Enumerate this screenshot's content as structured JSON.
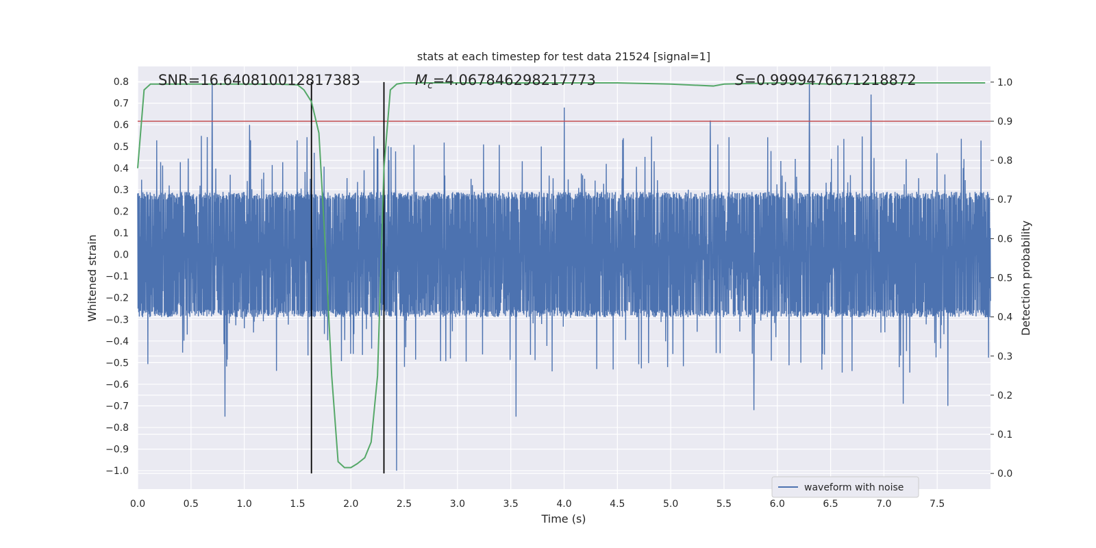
{
  "chart_data": {
    "type": "line",
    "title": "stats at each timestep for test data 21524 [signal=1]",
    "xlabel": "Time (s)",
    "ylabel": "Whitened strain",
    "y2label": "Detection probability",
    "xlim": [
      0.0,
      8.0
    ],
    "ylim": [
      -1.085,
      0.87
    ],
    "y2lim": [
      -0.04,
      1.04
    ],
    "xticks": [
      "0.0",
      "0.5",
      "1.0",
      "1.5",
      "2.0",
      "2.5",
      "3.0",
      "3.5",
      "4.0",
      "4.5",
      "5.0",
      "5.5",
      "6.0",
      "6.5",
      "7.0",
      "7.5"
    ],
    "yticks": [
      "0.8",
      "0.7",
      "0.6",
      "0.5",
      "0.4",
      "0.3",
      "0.2",
      "0.1",
      "0.0",
      "−0.1",
      "−0.2",
      "−0.3",
      "−0.4",
      "−0.5",
      "−0.6",
      "−0.7",
      "−0.8",
      "−0.9",
      "−1.0"
    ],
    "y2ticks": [
      "1.0",
      "0.9",
      "0.8",
      "0.7",
      "0.6",
      "0.5",
      "0.4",
      "0.3",
      "0.2",
      "0.1",
      "0.0"
    ],
    "annotations": {
      "snr": "SNR=16.640810012817383",
      "mc_symbol": "M",
      "mc_sub": "c",
      "mc_value": "=4.067846298217773",
      "s_symbol": "S",
      "s_value": "=0.9999476671218872"
    },
    "threshold": {
      "value": 0.9,
      "axis": "right",
      "color": "#c44e52"
    },
    "vlines": [
      1.63,
      2.31
    ],
    "waveform": {
      "name": "waveform with noise",
      "color": "#4c72b0",
      "typical_envelope": 0.29,
      "peaks": [
        {
          "x": 0.7,
          "y": 0.8
        },
        {
          "x": 2.43,
          "y": -1.0
        },
        {
          "x": 6.3,
          "y": 0.8
        },
        {
          "x": 0.82,
          "y": -0.75
        },
        {
          "x": 3.55,
          "y": -0.75
        },
        {
          "x": 7.18,
          "y": -0.69
        },
        {
          "x": 5.78,
          "y": -0.72
        },
        {
          "x": 1.05,
          "y": 0.6
        },
        {
          "x": 4.0,
          "y": 0.68
        },
        {
          "x": 5.37,
          "y": 0.62
        },
        {
          "x": 6.88,
          "y": 0.74
        },
        {
          "x": 7.6,
          "y": -0.7
        }
      ]
    },
    "probability": {
      "name": "detection probability",
      "color": "#55a868",
      "x": [
        0.0,
        0.06,
        0.12,
        0.2,
        0.5,
        1.0,
        1.3,
        1.5,
        1.56,
        1.63,
        1.7,
        1.76,
        1.82,
        1.88,
        1.94,
        2.0,
        2.06,
        2.13,
        2.19,
        2.25,
        2.31,
        2.37,
        2.43,
        2.5,
        3.0,
        4.0,
        4.5,
        5.0,
        5.4,
        5.5,
        6.0,
        6.5,
        7.0,
        7.5,
        7.95
      ],
      "y": [
        0.78,
        0.98,
        0.995,
        0.995,
        0.995,
        0.995,
        0.995,
        0.993,
        0.98,
        0.95,
        0.87,
        0.58,
        0.25,
        0.03,
        0.015,
        0.015,
        0.025,
        0.04,
        0.08,
        0.25,
        0.78,
        0.98,
        0.995,
        0.998,
        0.998,
        0.998,
        0.998,
        0.995,
        0.99,
        0.995,
        0.998,
        0.995,
        0.998,
        0.998,
        0.998
      ]
    },
    "legend": {
      "label": "waveform with noise",
      "position": "lower-right"
    },
    "grid": true
  }
}
